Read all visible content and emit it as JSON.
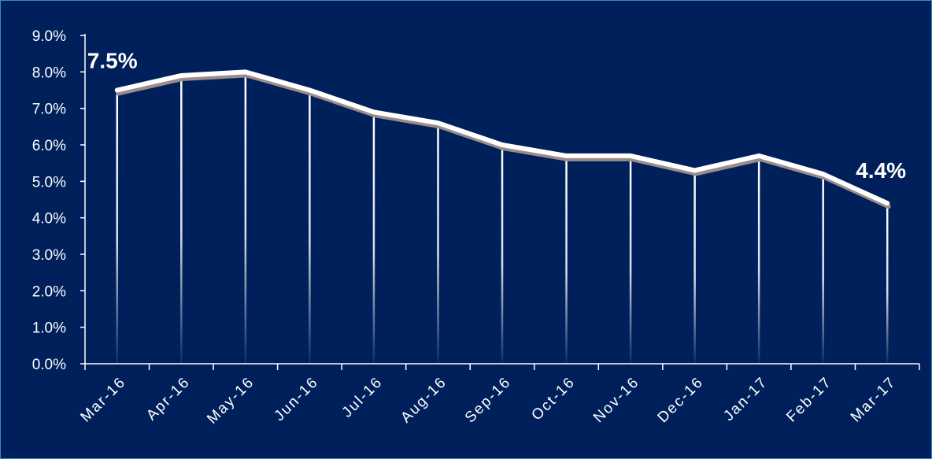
{
  "chart_data": {
    "type": "line",
    "title": "",
    "xlabel": "",
    "ylabel": "",
    "categories": [
      "Mar-16",
      "Apr-16",
      "May-16",
      "Jun-16",
      "Jul-16",
      "Aug-16",
      "Sep-16",
      "Oct-16",
      "Nov-16",
      "Dec-16",
      "Jan-17",
      "Feb-17",
      "Mar-17"
    ],
    "series": [
      {
        "values": [
          7.5,
          7.9,
          8.0,
          7.5,
          6.9,
          6.6,
          6.0,
          5.7,
          5.7,
          5.3,
          5.7,
          5.2,
          4.4
        ]
      }
    ],
    "ylim": [
      0,
      9
    ],
    "yticks": [
      "0.0%",
      "1.0%",
      "2.0%",
      "3.0%",
      "4.0%",
      "5.0%",
      "6.0%",
      "7.0%",
      "8.0%",
      "9.0%"
    ],
    "grid": false,
    "drop_lines": true,
    "annotations": [
      {
        "text": "7.5%",
        "category": "Mar-16"
      },
      {
        "text": "4.4%",
        "category": "Mar-17"
      }
    ],
    "colors": {
      "background": "#00205b",
      "line": "#ffffff",
      "line_shadow": "#9a8c8a",
      "text": "#ffffff"
    }
  }
}
